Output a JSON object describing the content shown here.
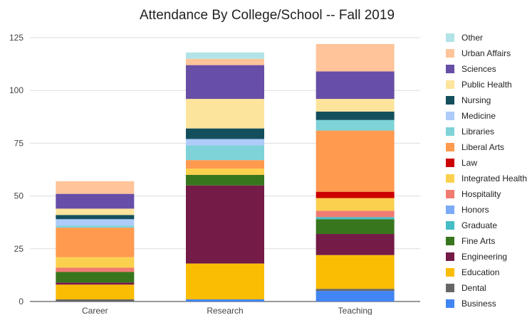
{
  "chart_data": {
    "type": "bar",
    "stacked": true,
    "title": "Attendance By College/School -- Fall 2019",
    "categories": [
      "Career",
      "Research",
      "Teaching"
    ],
    "ylim": [
      0,
      125
    ],
    "yticks": [
      "0",
      "25",
      "50",
      "75",
      "100",
      "125"
    ],
    "grid": true,
    "legend_position": "right",
    "series": [
      {
        "name": "Business",
        "color": "#4285f4",
        "values": [
          0,
          1,
          5
        ]
      },
      {
        "name": "Dental",
        "color": "#666666",
        "values": [
          1,
          0,
          1
        ]
      },
      {
        "name": "Education",
        "color": "#fbbc04",
        "values": [
          7,
          17,
          16
        ]
      },
      {
        "name": "Engineering",
        "color": "#741b47",
        "values": [
          1,
          37,
          10
        ]
      },
      {
        "name": "Fine Arts",
        "color": "#38761d",
        "values": [
          5,
          5,
          7
        ]
      },
      {
        "name": "Graduate",
        "color": "#46bdc6",
        "values": [
          0,
          0,
          1
        ]
      },
      {
        "name": "Honors",
        "color": "#7baaf7",
        "values": [
          0,
          0,
          0
        ]
      },
      {
        "name": "Hospitality",
        "color": "#f07b72",
        "values": [
          2,
          0,
          3
        ]
      },
      {
        "name": "Integrated Health",
        "color": "#fcd04f",
        "values": [
          5,
          3,
          6
        ]
      },
      {
        "name": "Law",
        "color": "#cc0000",
        "values": [
          0,
          0,
          3
        ]
      },
      {
        "name": "Liberal Arts",
        "color": "#ff9a4f",
        "values": [
          14,
          4,
          29
        ]
      },
      {
        "name": "Libraries",
        "color": "#7dd3d8",
        "values": [
          1,
          7,
          5
        ]
      },
      {
        "name": "Medicine",
        "color": "#aecbfa",
        "values": [
          3,
          3,
          0
        ]
      },
      {
        "name": "Nursing",
        "color": "#134f5c",
        "values": [
          2,
          5,
          4
        ]
      },
      {
        "name": "Public Health",
        "color": "#fde49c",
        "values": [
          3,
          14,
          6
        ]
      },
      {
        "name": "Sciences",
        "color": "#674ea7",
        "values": [
          7,
          16,
          13
        ]
      },
      {
        "name": "Urban Affairs",
        "color": "#ffc499",
        "values": [
          6,
          3,
          13
        ]
      },
      {
        "name": "Other",
        "color": "#b2e3e8",
        "values": [
          0,
          3,
          0
        ]
      }
    ]
  }
}
